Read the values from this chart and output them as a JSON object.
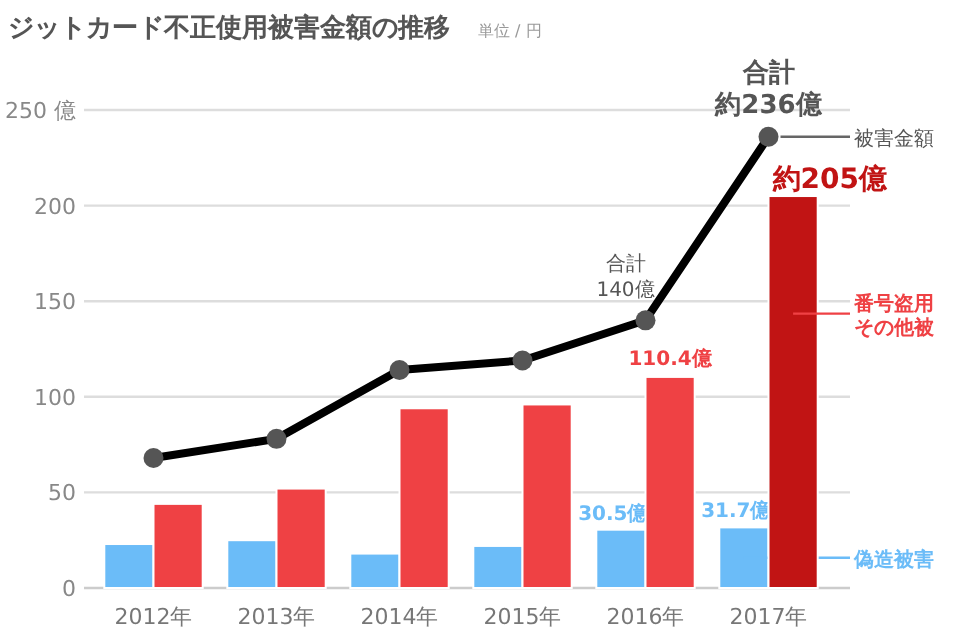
{
  "chart_data": {
    "type": "bar",
    "title": "ジットカード不正使用被害金額の推移",
    "subtitle": "単位 / 円",
    "categories": [
      "2012年",
      "2013年",
      "2014年",
      "2015年",
      "2016年",
      "2017年"
    ],
    "series": [
      {
        "name": "偽造被害",
        "color": "#6bbcf8",
        "values": [
          23,
          25,
          18,
          22,
          30.5,
          31.7
        ],
        "value_labels": [
          null,
          null,
          null,
          null,
          "30.5億",
          "31.7億"
        ]
      },
      {
        "name": "番号盗用その他被",
        "color": "#ef4144",
        "colors": [
          "#ef4144",
          "#ef4144",
          "#ef4144",
          "#ef4144",
          "#ef4144",
          "#c11414"
        ],
        "values": [
          44,
          52,
          94,
          96,
          110.4,
          205
        ],
        "value_labels": [
          null,
          null,
          null,
          null,
          "110.4億",
          "約205億"
        ]
      },
      {
        "name": "被害金額",
        "type": "line",
        "color": "#000000",
        "marker": "circle",
        "values": [
          68,
          78,
          114,
          119,
          140,
          236
        ]
      }
    ],
    "ylim": [
      0,
      250
    ],
    "yticks": [
      0,
      50,
      100,
      150,
      200,
      {
        "value": 250,
        "label": "250 億"
      }
    ],
    "grid": "y",
    "legend": "right",
    "annotations": [
      {
        "text": "合計",
        "x": "2016年",
        "y": 140
      },
      {
        "text": "140億",
        "x": "2016年",
        "y": 140
      },
      {
        "text": "合計",
        "x": "2017年",
        "y": 236
      },
      {
        "text": "約236億",
        "x": "2017年",
        "y": 236
      }
    ]
  }
}
